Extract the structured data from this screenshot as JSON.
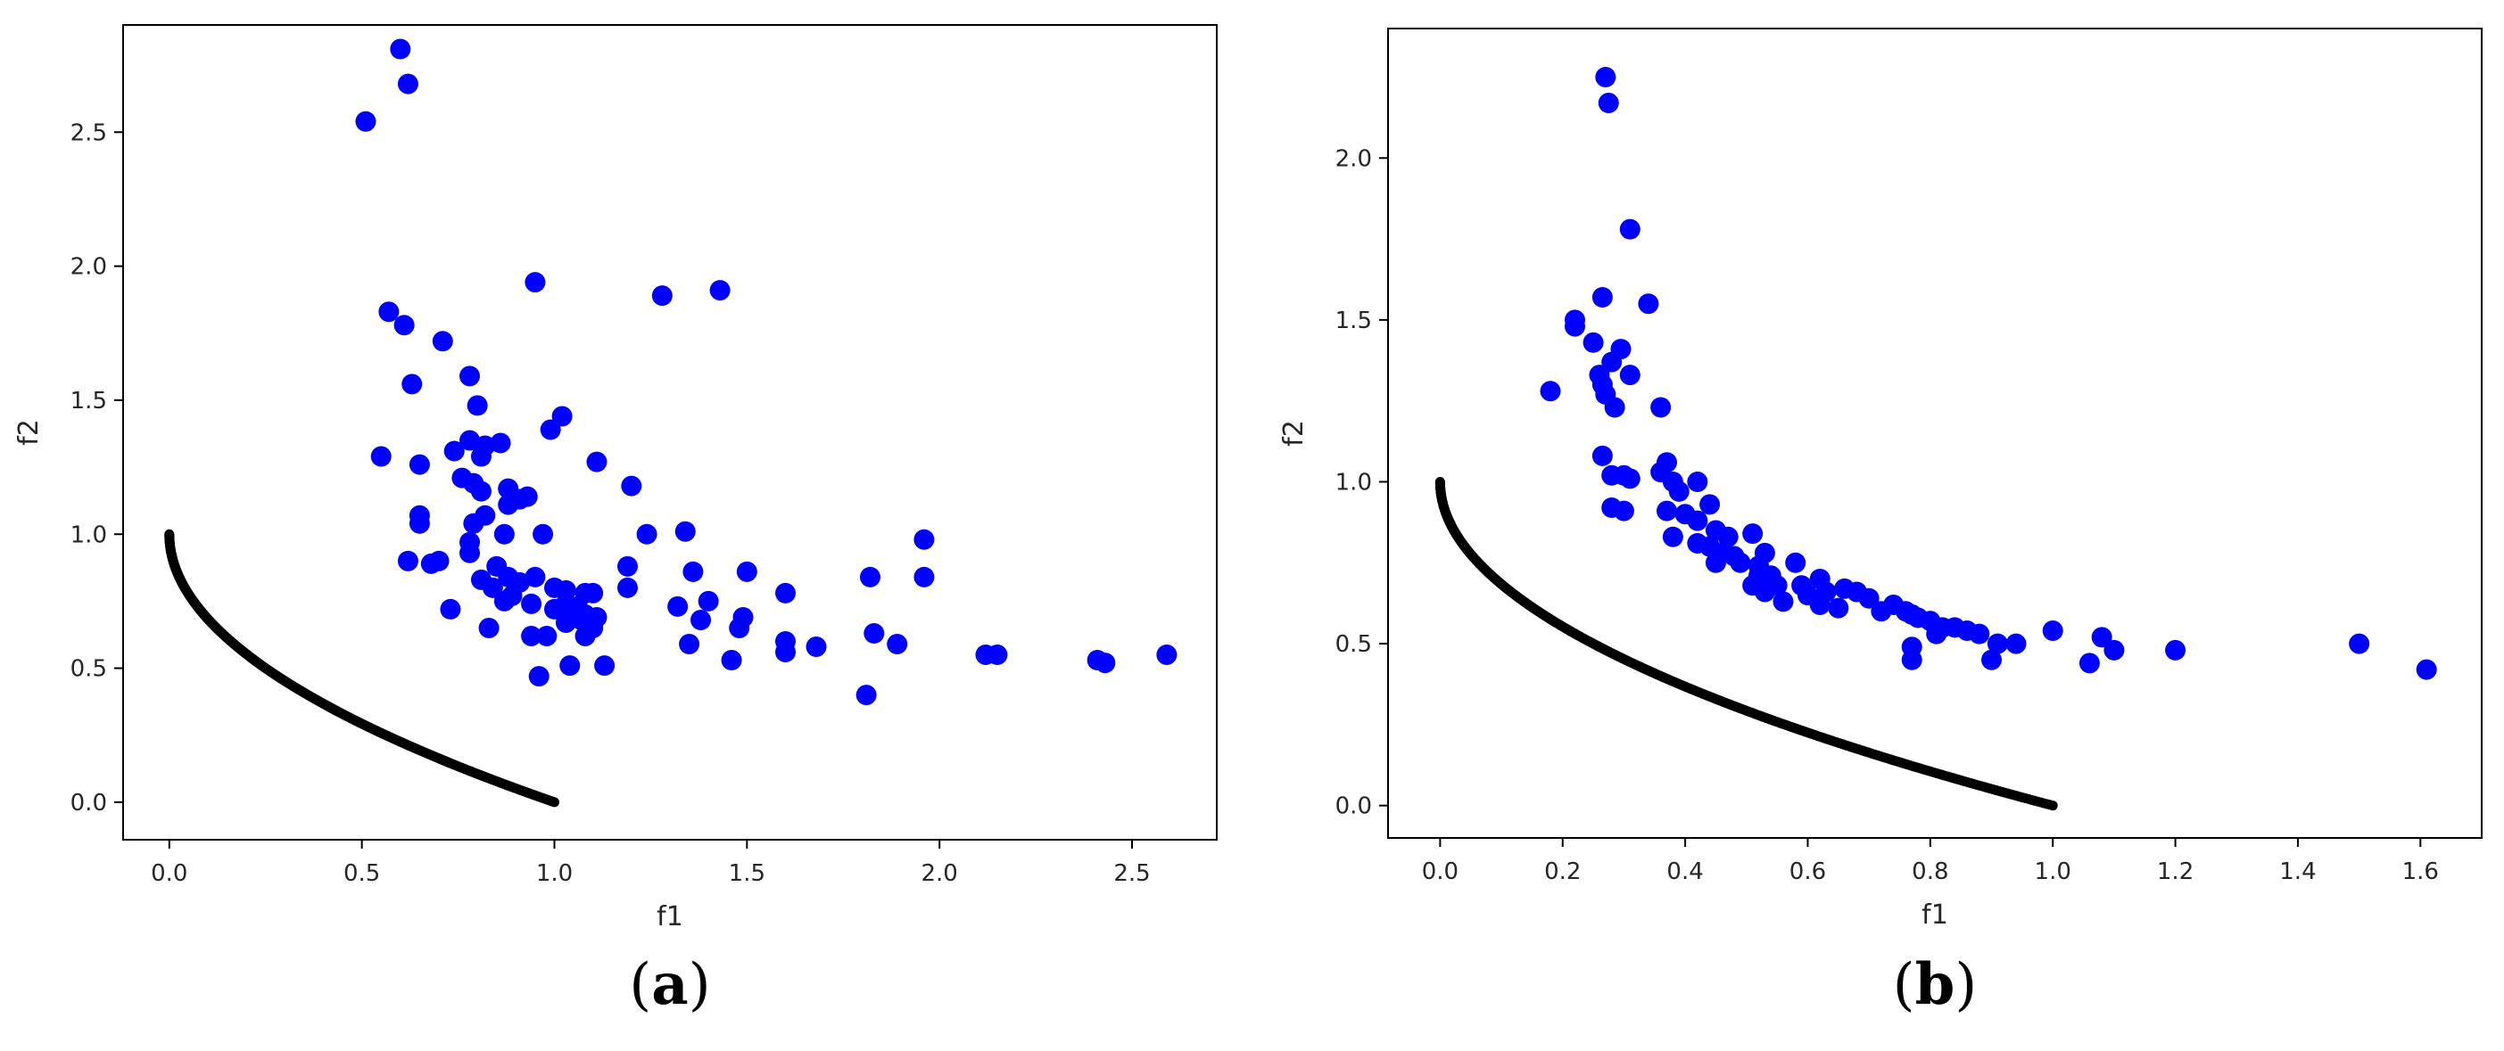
{
  "colors": {
    "scatter": "#0000ff",
    "front": "#000000",
    "axes": "#000000",
    "text": "#262626"
  },
  "chart_data": [
    {
      "type": "scatter",
      "panel_label": "(a)",
      "panel_letter": "a",
      "xlabel": "f1",
      "ylabel": "f2",
      "xlim": [
        -0.12,
        2.72
      ],
      "ylim": [
        -0.14,
        2.9
      ],
      "xticks": [
        0.0,
        0.5,
        1.0,
        1.5,
        2.0,
        2.5
      ],
      "xtick_labels": [
        "0.0",
        "0.5",
        "1.0",
        "1.5",
        "2.0",
        "2.5"
      ],
      "yticks": [
        0.0,
        0.5,
        1.0,
        1.5,
        2.0,
        2.5
      ],
      "ytick_labels": [
        "0.0",
        "0.5",
        "1.0",
        "1.5",
        "2.0",
        "2.5"
      ],
      "grid": false,
      "front": {
        "f1_range": [
          0.0,
          1.0
        ],
        "relation": "f2 = 1 - sqrt(f1)"
      },
      "points": [
        [
          0.6,
          2.81
        ],
        [
          0.62,
          2.68
        ],
        [
          0.51,
          2.54
        ],
        [
          0.95,
          1.94
        ],
        [
          1.28,
          1.89
        ],
        [
          1.43,
          1.91
        ],
        [
          0.57,
          1.83
        ],
        [
          0.61,
          1.78
        ],
        [
          0.71,
          1.72
        ],
        [
          0.63,
          1.56
        ],
        [
          0.78,
          1.59
        ],
        [
          0.8,
          1.48
        ],
        [
          1.02,
          1.44
        ],
        [
          0.99,
          1.39
        ],
        [
          0.78,
          1.35
        ],
        [
          0.74,
          1.31
        ],
        [
          0.55,
          1.29
        ],
        [
          0.65,
          1.26
        ],
        [
          0.82,
          1.33
        ],
        [
          0.86,
          1.34
        ],
        [
          1.11,
          1.27
        ],
        [
          0.81,
          1.29
        ],
        [
          0.76,
          1.21
        ],
        [
          0.79,
          1.19
        ],
        [
          0.81,
          1.16
        ],
        [
          0.88,
          1.17
        ],
        [
          0.93,
          1.14
        ],
        [
          0.91,
          1.13
        ],
        [
          1.2,
          1.18
        ],
        [
          0.88,
          1.11
        ],
        [
          0.65,
          1.07
        ],
        [
          0.65,
          1.04
        ],
        [
          0.79,
          1.04
        ],
        [
          0.82,
          1.07
        ],
        [
          0.87,
          1.0
        ],
        [
          0.97,
          1.0
        ],
        [
          1.24,
          1.0
        ],
        [
          1.34,
          1.01
        ],
        [
          0.78,
          0.97
        ],
        [
          0.78,
          0.93
        ],
        [
          1.96,
          0.98
        ],
        [
          0.62,
          0.9
        ],
        [
          0.68,
          0.89
        ],
        [
          0.7,
          0.9
        ],
        [
          0.85,
          0.88
        ],
        [
          0.88,
          0.84
        ],
        [
          0.81,
          0.83
        ],
        [
          0.84,
          0.8
        ],
        [
          0.91,
          0.82
        ],
        [
          0.95,
          0.84
        ],
        [
          1.0,
          0.8
        ],
        [
          1.03,
          0.79
        ],
        [
          1.08,
          0.78
        ],
        [
          1.1,
          0.78
        ],
        [
          1.19,
          0.88
        ],
        [
          1.36,
          0.86
        ],
        [
          1.5,
          0.86
        ],
        [
          1.96,
          0.84
        ],
        [
          1.82,
          0.84
        ],
        [
          1.19,
          0.8
        ],
        [
          1.6,
          0.78
        ],
        [
          0.87,
          0.75
        ],
        [
          0.89,
          0.77
        ],
        [
          0.94,
          0.74
        ],
        [
          1.0,
          0.72
        ],
        [
          1.03,
          0.74
        ],
        [
          1.06,
          0.73
        ],
        [
          1.08,
          0.7
        ],
        [
          1.11,
          0.69
        ],
        [
          0.73,
          0.72
        ],
        [
          1.32,
          0.73
        ],
        [
          1.4,
          0.75
        ],
        [
          1.03,
          0.67
        ],
        [
          1.07,
          0.68
        ],
        [
          1.1,
          0.65
        ],
        [
          1.38,
          0.68
        ],
        [
          1.49,
          0.69
        ],
        [
          0.83,
          0.65
        ],
        [
          0.94,
          0.62
        ],
        [
          0.98,
          0.62
        ],
        [
          1.08,
          0.62
        ],
        [
          1.48,
          0.65
        ],
        [
          1.83,
          0.63
        ],
        [
          1.35,
          0.59
        ],
        [
          1.6,
          0.6
        ],
        [
          1.68,
          0.58
        ],
        [
          1.89,
          0.59
        ],
        [
          1.6,
          0.56
        ],
        [
          2.12,
          0.55
        ],
        [
          2.15,
          0.55
        ],
        [
          2.41,
          0.53
        ],
        [
          2.43,
          0.52
        ],
        [
          2.59,
          0.55
        ],
        [
          1.04,
          0.51
        ],
        [
          1.13,
          0.51
        ],
        [
          1.46,
          0.53
        ],
        [
          0.96,
          0.47
        ],
        [
          1.81,
          0.4
        ]
      ]
    },
    {
      "type": "scatter",
      "panel_label": "(b)",
      "panel_letter": "b",
      "xlabel": "f1",
      "ylabel": "f2",
      "xlim": [
        -0.085,
        1.7
      ],
      "ylim": [
        -0.1,
        2.4
      ],
      "xticks": [
        0.0,
        0.2,
        0.4,
        0.6,
        0.8,
        1.0,
        1.2,
        1.4,
        1.6
      ],
      "xtick_labels": [
        "0.0",
        "0.2",
        "0.4",
        "0.6",
        "0.8",
        "1.0",
        "1.2",
        "1.4",
        "1.6"
      ],
      "yticks": [
        0.0,
        0.5,
        1.0,
        1.5,
        2.0
      ],
      "ytick_labels": [
        "0.0",
        "0.5",
        "1.0",
        "1.5",
        "2.0"
      ],
      "grid": false,
      "front": {
        "f1_range": [
          0.0,
          1.0
        ],
        "relation": "f2 = 1 - sqrt(f1)"
      },
      "points": [
        [
          0.27,
          2.25
        ],
        [
          0.275,
          2.17
        ],
        [
          0.31,
          1.78
        ],
        [
          0.265,
          1.57
        ],
        [
          0.34,
          1.55
        ],
        [
          0.22,
          1.5
        ],
        [
          0.22,
          1.48
        ],
        [
          0.25,
          1.43
        ],
        [
          0.295,
          1.41
        ],
        [
          0.28,
          1.37
        ],
        [
          0.26,
          1.33
        ],
        [
          0.31,
          1.33
        ],
        [
          0.265,
          1.3
        ],
        [
          0.18,
          1.28
        ],
        [
          0.27,
          1.27
        ],
        [
          0.285,
          1.23
        ],
        [
          0.36,
          1.23
        ],
        [
          0.265,
          1.08
        ],
        [
          0.37,
          1.06
        ],
        [
          0.36,
          1.03
        ],
        [
          0.28,
          1.02
        ],
        [
          0.3,
          1.02
        ],
        [
          0.31,
          1.01
        ],
        [
          0.38,
          1.0
        ],
        [
          0.42,
          1.0
        ],
        [
          0.39,
          0.97
        ],
        [
          0.44,
          0.93
        ],
        [
          0.28,
          0.92
        ],
        [
          0.3,
          0.91
        ],
        [
          0.37,
          0.91
        ],
        [
          0.4,
          0.9
        ],
        [
          0.42,
          0.88
        ],
        [
          0.45,
          0.85
        ],
        [
          0.47,
          0.83
        ],
        [
          0.51,
          0.84
        ],
        [
          0.38,
          0.83
        ],
        [
          0.42,
          0.81
        ],
        [
          0.44,
          0.8
        ],
        [
          0.46,
          0.78
        ],
        [
          0.48,
          0.77
        ],
        [
          0.53,
          0.78
        ],
        [
          0.45,
          0.75
        ],
        [
          0.49,
          0.75
        ],
        [
          0.52,
          0.74
        ],
        [
          0.58,
          0.75
        ],
        [
          0.52,
          0.71
        ],
        [
          0.54,
          0.71
        ],
        [
          0.51,
          0.68
        ],
        [
          0.55,
          0.68
        ],
        [
          0.59,
          0.68
        ],
        [
          0.62,
          0.7
        ],
        [
          0.53,
          0.66
        ],
        [
          0.6,
          0.65
        ],
        [
          0.63,
          0.66
        ],
        [
          0.66,
          0.67
        ],
        [
          0.68,
          0.66
        ],
        [
          0.7,
          0.64
        ],
        [
          0.56,
          0.63
        ],
        [
          0.62,
          0.62
        ],
        [
          0.65,
          0.61
        ],
        [
          0.72,
          0.6
        ],
        [
          0.74,
          0.62
        ],
        [
          0.76,
          0.6
        ],
        [
          0.77,
          0.59
        ],
        [
          0.78,
          0.58
        ],
        [
          0.8,
          0.57
        ],
        [
          0.82,
          0.55
        ],
        [
          0.84,
          0.55
        ],
        [
          0.86,
          0.54
        ],
        [
          0.88,
          0.53
        ],
        [
          0.91,
          0.5
        ],
        [
          0.94,
          0.5
        ],
        [
          0.81,
          0.53
        ],
        [
          0.77,
          0.49
        ],
        [
          0.77,
          0.45
        ],
        [
          0.9,
          0.45
        ],
        [
          1.0,
          0.54
        ],
        [
          1.08,
          0.52
        ],
        [
          1.1,
          0.48
        ],
        [
          1.06,
          0.44
        ],
        [
          1.2,
          0.48
        ],
        [
          1.5,
          0.5
        ],
        [
          1.61,
          0.42
        ]
      ]
    }
  ]
}
